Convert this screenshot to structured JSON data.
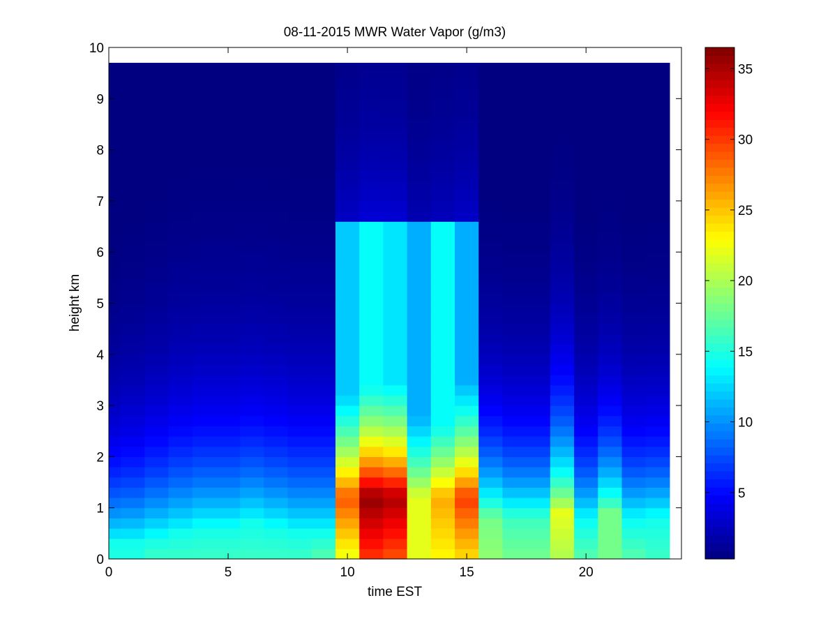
{
  "chart_data": {
    "type": "heatmap",
    "title": "08-11-2015 MWR Water Vapor (g/m3)",
    "xlabel": "time EST",
    "ylabel": "height km",
    "xlim": [
      0,
      24
    ],
    "ylim": [
      0,
      10
    ],
    "xticks": [
      0,
      5,
      10,
      15,
      20
    ],
    "yticks": [
      0,
      1,
      2,
      3,
      4,
      5,
      6,
      7,
      8,
      9,
      10
    ],
    "colormap": "jet",
    "clim": [
      0.3,
      36.5
    ],
    "colorbar_ticks": [
      5,
      10,
      15,
      20,
      25,
      30,
      35
    ],
    "grid": false,
    "x": [
      0,
      1,
      2,
      3,
      4,
      5,
      6,
      7,
      8,
      9,
      10,
      11,
      12,
      13,
      14,
      15,
      16,
      17,
      18,
      19,
      20,
      21,
      22,
      23
    ],
    "y": [
      0.1,
      0.3,
      0.5,
      0.7,
      0.9,
      1.1,
      1.3,
      1.5,
      1.7,
      1.9,
      2.1,
      2.3,
      2.5,
      2.7,
      2.9,
      3.1,
      3.3,
      3.5,
      3.7,
      3.9,
      4.1,
      4.3,
      4.5,
      4.7,
      4.9,
      5.1,
      5.3,
      5.5,
      5.7,
      5.9,
      6.1,
      6.3,
      6.5,
      6.7,
      6.9,
      7.1,
      7.3,
      7.5,
      7.7,
      7.9,
      8.1,
      8.3,
      8.5,
      8.7,
      8.9,
      9.1,
      9.3,
      9.5,
      9.7
    ],
    "surface": [
      15,
      15,
      16,
      16,
      16,
      16,
      16,
      16,
      16,
      17,
      22,
      30,
      29,
      22,
      23,
      24,
      19,
      18,
      18,
      20,
      17,
      18,
      17,
      16
    ],
    "peak": [
      14.5,
      14.5,
      14.5,
      14.5,
      14.5,
      14.5,
      14.5,
      14.5,
      14.5,
      14.5,
      29,
      36,
      35,
      22,
      26,
      30,
      18,
      16,
      16,
      22,
      14,
      18,
      14,
      14.5
    ],
    "peak_height": [
      0.3,
      0.3,
      0.4,
      0.5,
      0.6,
      0.6,
      0.7,
      0.6,
      0.5,
      0.5,
      1.2,
      1.2,
      1.2,
      1.2,
      1.2,
      1.2,
      0.8,
      0.8,
      0.8,
      0.9,
      0.8,
      0.9,
      0.8,
      0.8
    ],
    "scale_height": [
      1.6,
      1.7,
      1.8,
      1.9,
      1.9,
      1.9,
      1.9,
      1.9,
      1.9,
      1.9,
      2.3,
      2.3,
      2.3,
      2.3,
      2.3,
      2.3,
      1.6,
      1.6,
      1.6,
      1.8,
      1.6,
      1.6,
      1.6,
      1.6
    ],
    "floor": [
      0.4,
      0.4,
      0.4,
      0.4,
      0.4,
      0.4,
      0.4,
      0.4,
      0.4,
      0.4,
      12,
      14,
      13,
      11,
      14,
      11,
      1,
      1,
      1,
      1,
      1,
      1,
      1,
      1
    ],
    "floor_top": [
      0,
      0,
      0,
      0,
      0,
      0,
      0,
      0,
      0,
      0,
      6.6,
      6.6,
      6.6,
      6.6,
      6.6,
      6.6,
      0,
      0,
      0,
      0,
      0,
      0,
      0,
      0
    ],
    "top_height": [
      9.7,
      9.7,
      9.7,
      9.7,
      9.7,
      9.7,
      9.7,
      9.7,
      9.7,
      9.7,
      9.7,
      9.7,
      9.7,
      9.7,
      9.7,
      9.7,
      9.7,
      9.7,
      9.7,
      9.7,
      9.7,
      9.7,
      9.7,
      9.7
    ]
  }
}
